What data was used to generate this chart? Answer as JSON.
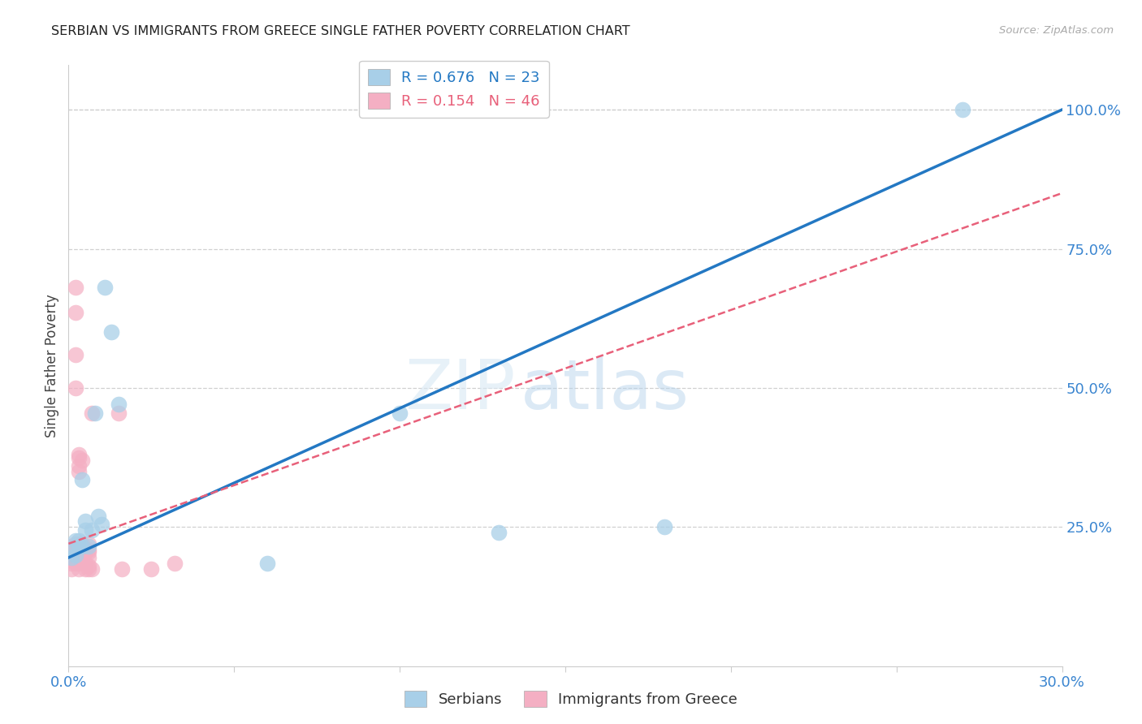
{
  "title": "SERBIAN VS IMMIGRANTS FROM GREECE SINGLE FATHER POVERTY CORRELATION CHART",
  "source": "Source: ZipAtlas.com",
  "ylabel": "Single Father Poverty",
  "right_ytick_labels": [
    "100.0%",
    "75.0%",
    "50.0%",
    "25.0%"
  ],
  "right_ytick_vals": [
    1.0,
    0.75,
    0.5,
    0.25
  ],
  "xmin": 0.0,
  "xmax": 0.3,
  "ymin": 0.0,
  "ymax": 1.08,
  "legend_entry1": "R = 0.676   N = 23",
  "legend_entry2": "R = 0.154   N = 46",
  "watermark_zip": "ZIP",
  "watermark_atlas": "atlas",
  "serbian_x": [
    0.001,
    0.001,
    0.002,
    0.002,
    0.003,
    0.003,
    0.004,
    0.004,
    0.005,
    0.005,
    0.006,
    0.007,
    0.008,
    0.009,
    0.01,
    0.011,
    0.013,
    0.015,
    0.06,
    0.1,
    0.13,
    0.18,
    0.27
  ],
  "serbian_y": [
    0.195,
    0.21,
    0.2,
    0.225,
    0.225,
    0.215,
    0.215,
    0.335,
    0.245,
    0.26,
    0.215,
    0.245,
    0.455,
    0.27,
    0.255,
    0.68,
    0.6,
    0.47,
    0.185,
    0.455,
    0.24,
    0.25,
    1.0
  ],
  "greece_x": [
    0.001,
    0.001,
    0.001,
    0.001,
    0.001,
    0.001,
    0.001,
    0.002,
    0.002,
    0.002,
    0.002,
    0.002,
    0.002,
    0.002,
    0.002,
    0.003,
    0.003,
    0.003,
    0.003,
    0.003,
    0.003,
    0.003,
    0.003,
    0.003,
    0.003,
    0.004,
    0.004,
    0.004,
    0.004,
    0.004,
    0.005,
    0.005,
    0.005,
    0.005,
    0.006,
    0.006,
    0.006,
    0.006,
    0.006,
    0.006,
    0.007,
    0.007,
    0.015,
    0.016,
    0.025,
    0.032
  ],
  "greece_y": [
    0.2,
    0.215,
    0.2,
    0.195,
    0.19,
    0.185,
    0.175,
    0.68,
    0.635,
    0.56,
    0.5,
    0.22,
    0.215,
    0.2,
    0.185,
    0.2,
    0.22,
    0.215,
    0.195,
    0.185,
    0.175,
    0.38,
    0.375,
    0.36,
    0.35,
    0.215,
    0.22,
    0.21,
    0.195,
    0.37,
    0.21,
    0.205,
    0.185,
    0.175,
    0.21,
    0.22,
    0.205,
    0.195,
    0.18,
    0.175,
    0.455,
    0.175,
    0.455,
    0.175,
    0.175,
    0.185
  ],
  "blue_scatter_color": "#a8cfe8",
  "pink_scatter_color": "#f4afc3",
  "blue_line_color": "#2378c3",
  "pink_line_color": "#e8607a",
  "grid_color": "#d0d0d0",
  "bg_color": "#ffffff",
  "title_color": "#222222",
  "right_tick_color": "#3a85d0",
  "bottom_tick_color": "#3a85d0",
  "blue_line_x0": 0.0,
  "blue_line_y0": 0.195,
  "blue_line_x1": 0.3,
  "blue_line_y1": 1.0,
  "pink_line_x0": 0.0,
  "pink_line_y0": 0.22,
  "pink_line_x1": 0.3,
  "pink_line_y1": 0.85
}
